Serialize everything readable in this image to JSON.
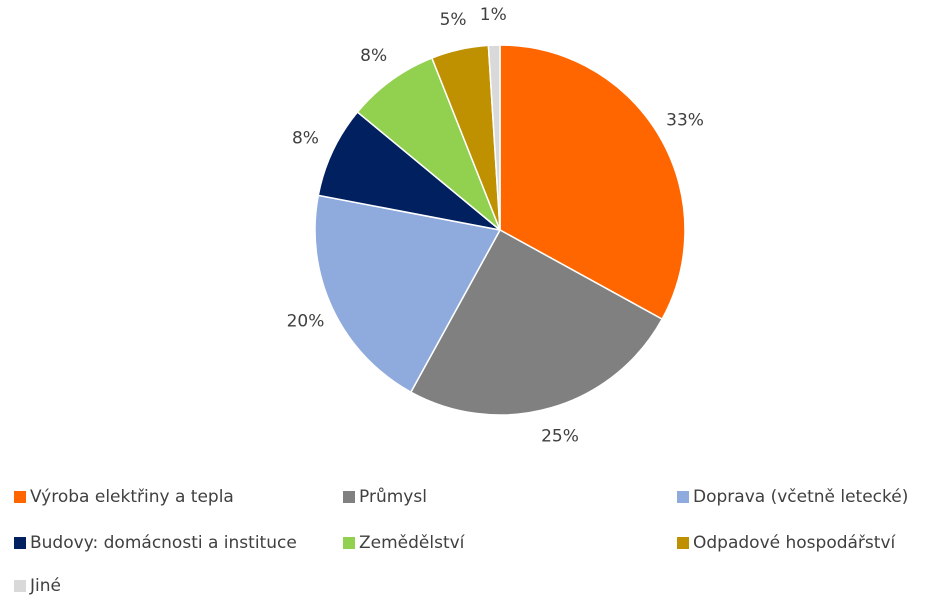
{
  "chart_data": {
    "type": "pie",
    "categories": [
      "Výroba elektřiny a tepla",
      "Průmysl",
      "Doprava (včetně letecké)",
      "Budovy: domácnosti a instituce",
      "Zemědělství",
      "Odpadové hospodářství",
      "Jiné"
    ],
    "values": [
      33,
      25,
      20,
      8,
      8,
      5,
      1
    ],
    "value_labels": [
      "33%",
      "25%",
      "20%",
      "8%",
      "8%",
      "5%",
      "1%"
    ],
    "colors": [
      "#ff6600",
      "#808080",
      "#8faadc",
      "#002060",
      "#92d050",
      "#bf9000",
      "#d9d9d9"
    ],
    "legend": "bottom"
  }
}
